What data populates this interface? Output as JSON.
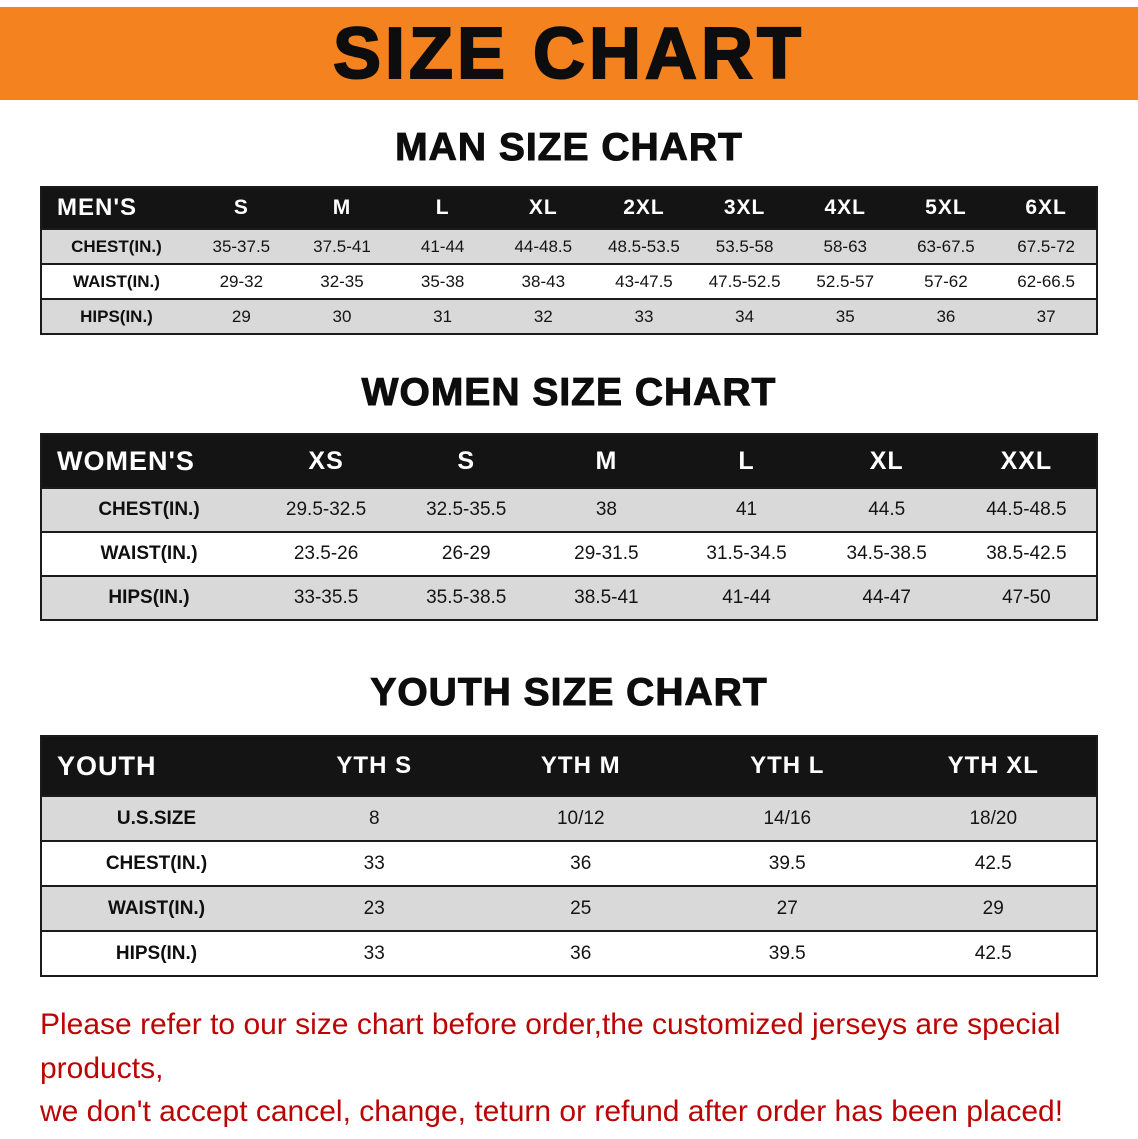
{
  "page": {
    "title": "SIZE CHART"
  },
  "colors": {
    "banner-orange": "#F4821F",
    "table-header-black": "#141414",
    "row-stripe-gray": "#D9D9D9",
    "note-red": "#BB0505"
  },
  "men": {
    "title": "MAN SIZE CHART",
    "header": [
      "MEN'S",
      "S",
      "M",
      "L",
      "XL",
      "2XL",
      "3XL",
      "4XL",
      "5XL",
      "6XL"
    ],
    "rows": [
      {
        "label": "CHEST(IN.)",
        "values": [
          "35-37.5",
          "37.5-41",
          "41-44",
          "44-48.5",
          "48.5-53.5",
          "53.5-58",
          "58-63",
          "63-67.5",
          "67.5-72"
        ]
      },
      {
        "label": "WAIST(IN.)",
        "values": [
          "29-32",
          "32-35",
          "35-38",
          "38-43",
          "43-47.5",
          "47.5-52.5",
          "52.5-57",
          "57-62",
          "62-66.5"
        ]
      },
      {
        "label": "HIPS(IN.)",
        "values": [
          "29",
          "30",
          "31",
          "32",
          "33",
          "34",
          "35",
          "36",
          "37"
        ]
      }
    ],
    "stripe_rows": [
      0,
      2
    ]
  },
  "women": {
    "title": "WOMEN SIZE CHART",
    "header": [
      "WOMEN'S",
      "XS",
      "S",
      "M",
      "L",
      "XL",
      "XXL"
    ],
    "rows": [
      {
        "label": "CHEST(IN.)",
        "values": [
          "29.5-32.5",
          "32.5-35.5",
          "38",
          "41",
          "44.5",
          "44.5-48.5"
        ]
      },
      {
        "label": "WAIST(IN.)",
        "values": [
          "23.5-26",
          "26-29",
          "29-31.5",
          "31.5-34.5",
          "34.5-38.5",
          "38.5-42.5"
        ]
      },
      {
        "label": "HIPS(IN.)",
        "values": [
          "33-35.5",
          "35.5-38.5",
          "38.5-41",
          "41-44",
          "44-47",
          "47-50"
        ]
      }
    ],
    "stripe_rows": [
      0,
      2
    ]
  },
  "youth": {
    "title": "YOUTH SIZE CHART",
    "header": [
      "YOUTH",
      "YTH S",
      "YTH M",
      "YTH L",
      "YTH XL"
    ],
    "rows": [
      {
        "label": "U.S.SIZE",
        "values": [
          "8",
          "10/12",
          "14/16",
          "18/20"
        ]
      },
      {
        "label": "CHEST(IN.)",
        "values": [
          "33",
          "36",
          "39.5",
          "42.5"
        ]
      },
      {
        "label": "WAIST(IN.)",
        "values": [
          "23",
          "25",
          "27",
          "29"
        ]
      },
      {
        "label": "HIPS(IN.)",
        "values": [
          "33",
          "36",
          "39.5",
          "42.5"
        ]
      }
    ],
    "stripe_rows": [
      0,
      2
    ]
  },
  "footer": {
    "line1": "Please refer to our size chart before order,the customized jerseys are special products,",
    "line2": "we don't accept cancel, change, teturn or refund after order has been placed!"
  }
}
